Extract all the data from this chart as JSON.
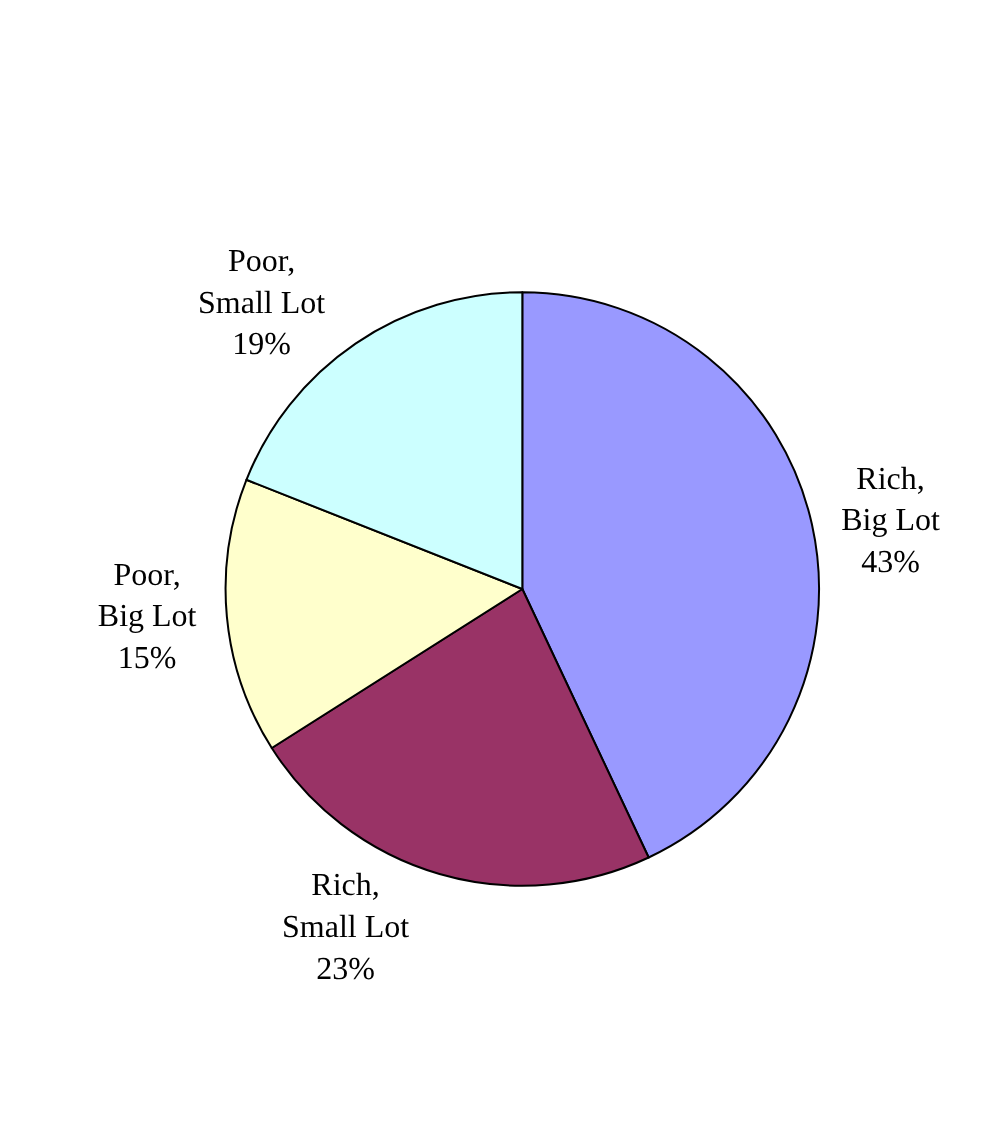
{
  "chart_data": {
    "type": "pie",
    "categories": [
      "Rich, Big Lot",
      "Rich, Small Lot",
      "Poor, Big Lot",
      "Poor, Small Lot"
    ],
    "values": [
      43,
      23,
      15,
      19
    ],
    "value_labels": [
      "43%",
      "23%",
      "15%",
      "19%"
    ],
    "colors": [
      "#9999ff",
      "#993366",
      "#ffffcc",
      "#ccffff"
    ],
    "legend": false
  }
}
